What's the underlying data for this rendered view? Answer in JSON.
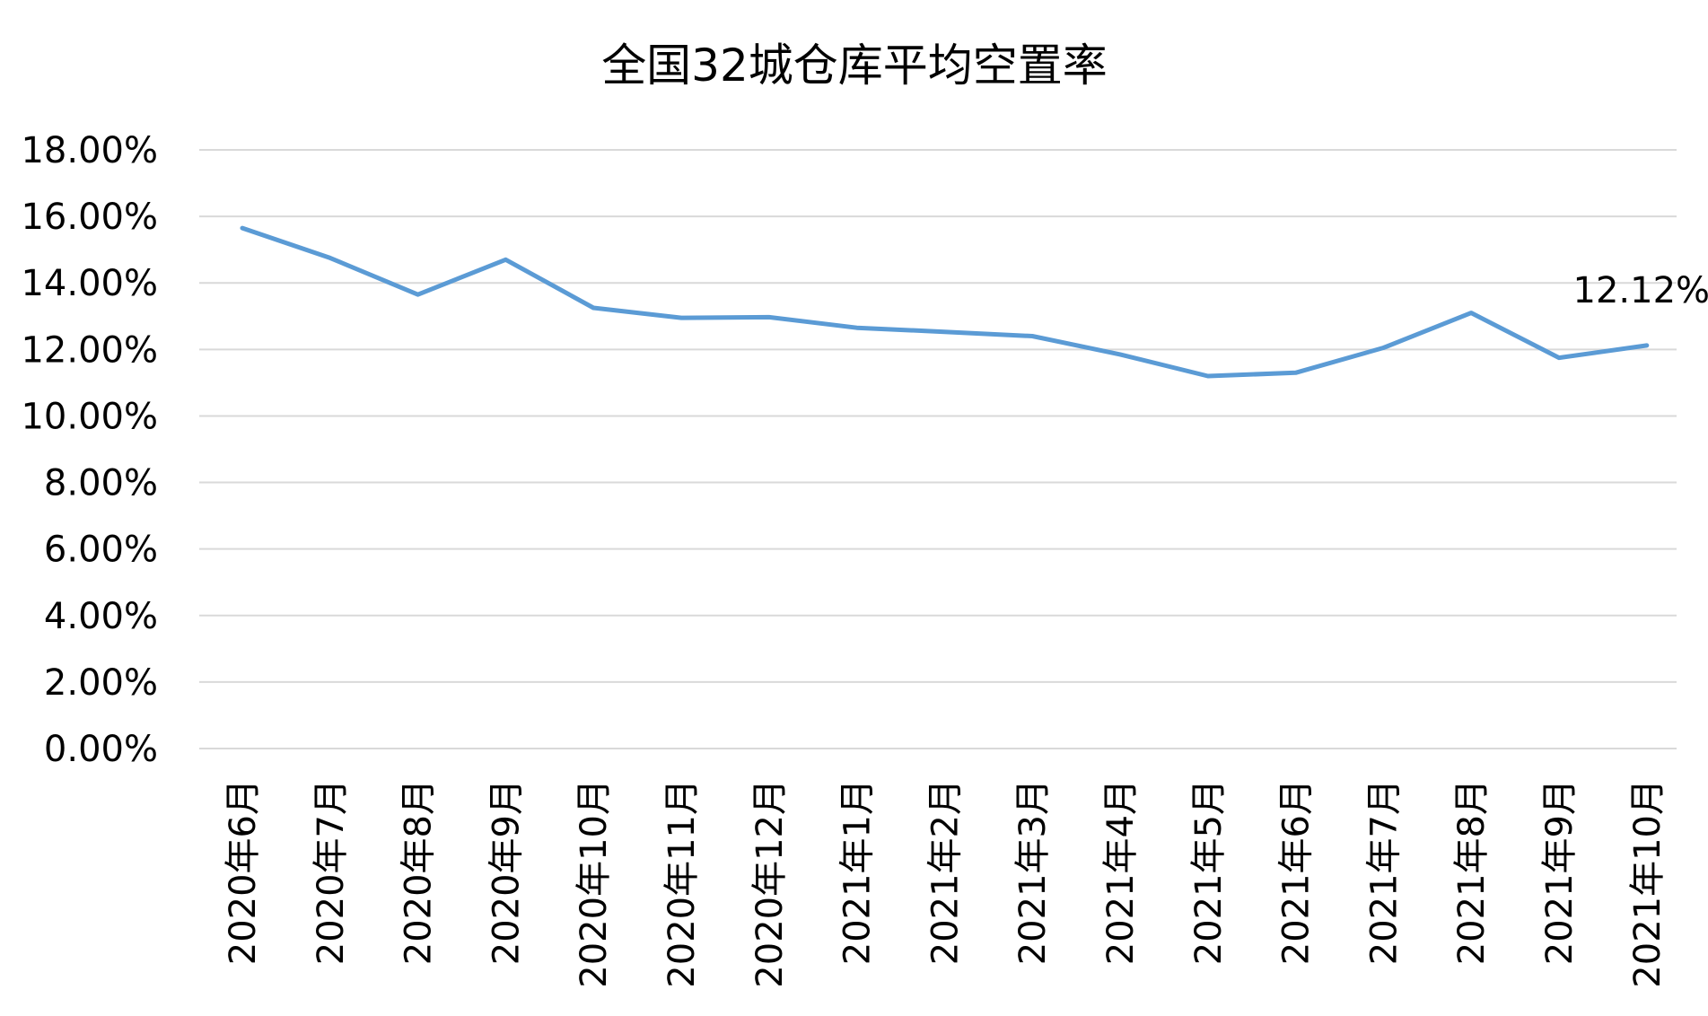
{
  "chart_data": {
    "type": "line",
    "title": "全国32城仓库平均空置率",
    "xlabel": "",
    "ylabel": "",
    "categories": [
      "2020年6月",
      "2020年7月",
      "2020年8月",
      "2020年9月",
      "2020年10月",
      "2020年11月",
      "2020年12月",
      "2021年1月",
      "2021年2月",
      "2021年3月",
      "2021年4月",
      "2021年5月",
      "2021年6月",
      "2021年7月",
      "2021年8月",
      "2021年9月",
      "2021年10月"
    ],
    "series": [
      {
        "values": [
          15.65,
          14.75,
          13.65,
          14.7,
          13.25,
          12.95,
          12.97,
          12.65,
          12.53,
          12.4,
          11.85,
          11.2,
          11.3,
          12.05,
          13.1,
          11.75,
          12.12
        ],
        "color": "#5b9bd5"
      }
    ],
    "data_labels": [
      {
        "index": 16,
        "text": "12.12%"
      }
    ],
    "ylim": [
      0,
      18
    ],
    "yticks": [
      {
        "value": 18,
        "label": "18.00%"
      },
      {
        "value": 16,
        "label": "16.00%"
      },
      {
        "value": 14,
        "label": "14.00%"
      },
      {
        "value": 12,
        "label": "12.00%"
      },
      {
        "value": 10,
        "label": "10.00%"
      },
      {
        "value": 8,
        "label": "8.00%"
      },
      {
        "value": 6,
        "label": "6.00%"
      },
      {
        "value": 4,
        "label": "4.00%"
      },
      {
        "value": 2,
        "label": "2.00%"
      },
      {
        "value": 0,
        "label": "0.00%"
      }
    ],
    "grid": true,
    "legend": "none",
    "gridline_color": "#d9d9d9"
  }
}
